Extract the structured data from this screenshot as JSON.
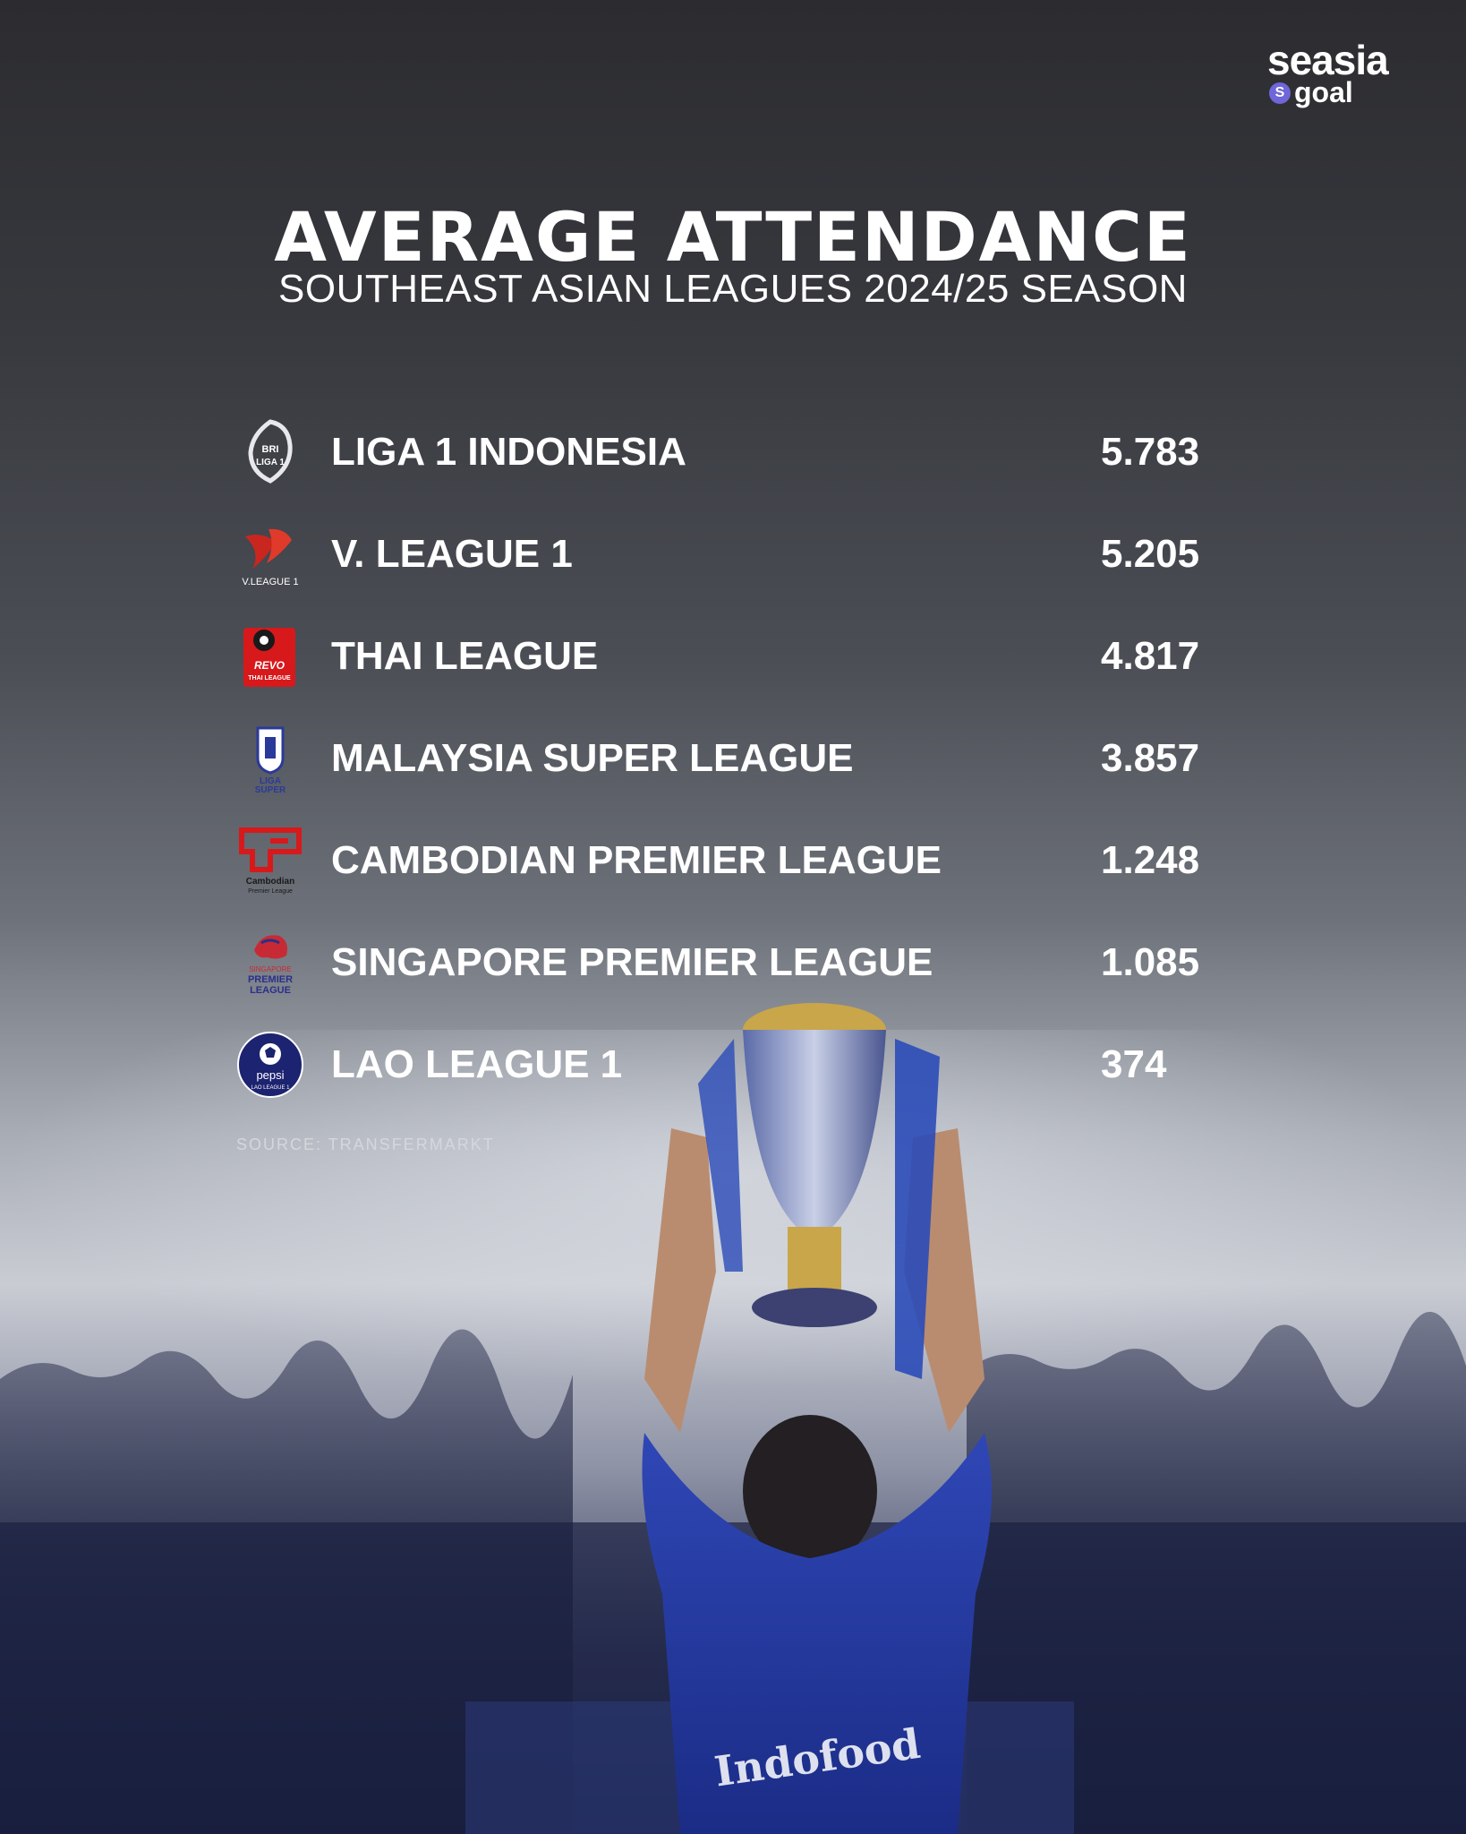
{
  "brand": {
    "name": "seasia",
    "sub": "goal",
    "badge": "S",
    "accent": "#6f66d9"
  },
  "header": {
    "title": "AVERAGE ATTENDANCE",
    "subtitle": "SOUTHEAST ASIAN LEAGUES 2024/25 SEASON"
  },
  "leagues": [
    {
      "name": "LIGA 1 INDONESIA",
      "value": "5.783",
      "logo_icon": "bri-liga-1-logo",
      "logo_text": "BRI LIGA 1"
    },
    {
      "name": "V. LEAGUE 1",
      "value": "5.205",
      "logo_icon": "v-league-1-logo",
      "logo_text": "V.LEAGUE 1"
    },
    {
      "name": "THAI LEAGUE",
      "value": "4.817",
      "logo_icon": "thai-league-logo",
      "logo_text": "THAI LEAGUE"
    },
    {
      "name": "MALAYSIA SUPER LEAGUE",
      "value": "3.857",
      "logo_icon": "liga-super-logo",
      "logo_text": "LIGA SUPER"
    },
    {
      "name": "CAMBODIAN PREMIER LEAGUE",
      "value": "1.248",
      "logo_icon": "cambodian-premier-league-logo",
      "logo_text": "Cambodian Premier League"
    },
    {
      "name": "SINGAPORE PREMIER LEAGUE",
      "value": "1.085",
      "logo_icon": "singapore-premier-league-logo",
      "logo_text": "SINGAPORE PREMIER LEAGUE"
    },
    {
      "name": "LAO LEAGUE 1",
      "value": "374",
      "logo_icon": "lao-league-1-logo",
      "logo_text": "pepsi LAO LEAGUE 1"
    }
  ],
  "source": "SOURCE: TRANSFERMARKT",
  "photo": {
    "description_icon": "trophy-celebration-photo"
  }
}
